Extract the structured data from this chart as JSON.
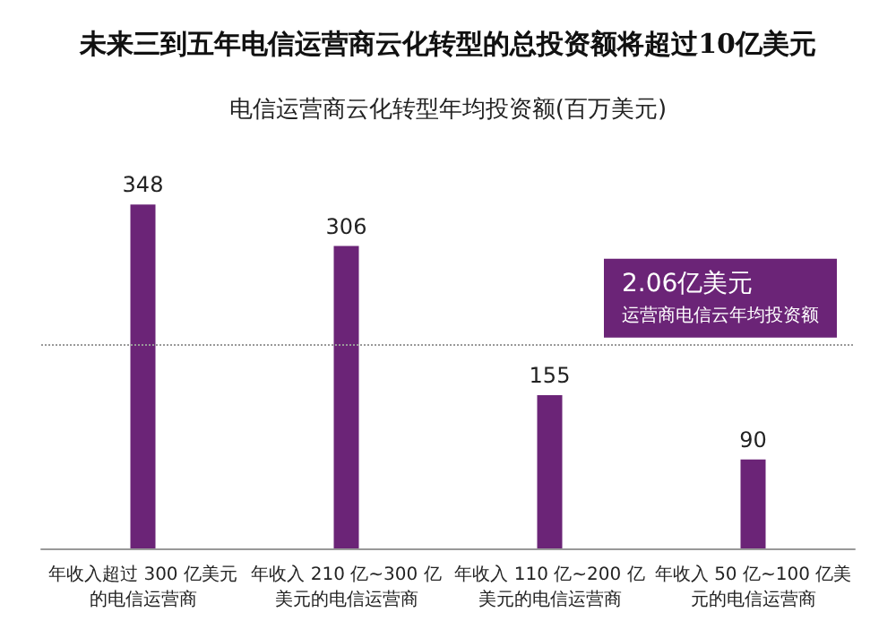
{
  "chart_data": {
    "type": "bar",
    "title": "未来三到五年电信运营商云化转型的总投资额将超过10亿美元",
    "subtitle": "电信运营商云化转型年均投资额(百万美元)",
    "categories": [
      "年收入超过 300 亿美元的电信运营商",
      "年收入 210 亿~300 亿美元的电信运营商",
      "年收入 110 亿~200 亿美元的电信运营商",
      "年收入 50 亿~100 亿美元的电信运营商"
    ],
    "values": [
      348,
      306,
      155,
      90
    ],
    "color": "#6b2477",
    "data_labels": true,
    "annotations": [
      "运营商电信云年均投资额"
    ],
    "ref_lines": [
      {
        "axis": "y",
        "value": 206,
        "label": "2.06亿美元",
        "color": "#999999",
        "line_style": "dotted"
      }
    ]
  }
}
